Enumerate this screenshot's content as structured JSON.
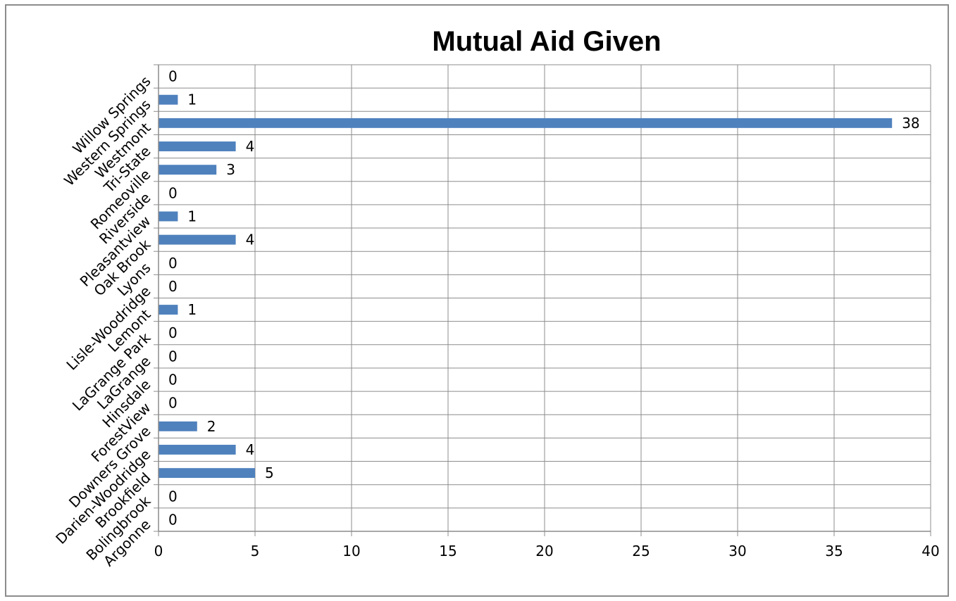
{
  "chart_data": {
    "type": "bar",
    "orientation": "horizontal",
    "title": "Mutual Aid Given",
    "xlabel": "",
    "ylabel": "",
    "categories": [
      "Argonne",
      "Bolingbrook",
      "Brookfield",
      "Darien-Woodridge",
      "Downers Grove",
      "ForestView",
      "Hinsdale",
      "LaGrange",
      "LaGrange Park",
      "Lemont",
      "Lisle-Woodridge",
      "Lyons",
      "Oak Brook",
      "Pleasantview",
      "Riverside",
      "Romeoville",
      "Tri-State",
      "Westmont",
      "Western Springs",
      "Willow Springs"
    ],
    "values": [
      0,
      0,
      5,
      4,
      2,
      0,
      0,
      0,
      0,
      1,
      0,
      0,
      4,
      1,
      0,
      3,
      4,
      38,
      1,
      0
    ],
    "xlim": [
      0,
      40
    ],
    "xticks": [
      0,
      5,
      10,
      15,
      20,
      25,
      30,
      35,
      40
    ],
    "grid": true,
    "legend": "none",
    "data_labels": true,
    "colors": {
      "bar": "#4f81bd",
      "grid": "#8c8c8c",
      "axis": "#8c8c8c"
    }
  }
}
